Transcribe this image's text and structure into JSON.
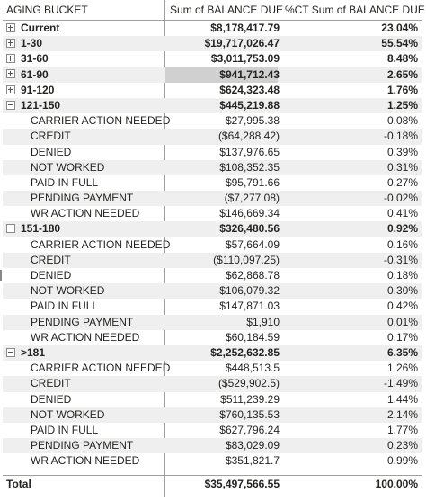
{
  "headers": {
    "bucket": "AGING BUCKET",
    "balance": "Sum of BALANCE DUE",
    "pct": "%CT Sum of BALANCE DUE"
  },
  "rows": [
    {
      "label": "Current",
      "balance": "$8,178,417.79",
      "pct": "23.04%",
      "level": 0,
      "expander": "plus"
    },
    {
      "label": "1-30",
      "balance": "$19,717,026.47",
      "pct": "55.54%",
      "level": 0,
      "expander": "plus"
    },
    {
      "label": "31-60",
      "balance": "$3,011,753.09",
      "pct": "8.48%",
      "level": 0,
      "expander": "plus"
    },
    {
      "label": "61-90",
      "balance": "$941,712.43",
      "pct": "2.65%",
      "level": 0,
      "expander": "plus",
      "highlight": true
    },
    {
      "label": "91-120",
      "balance": "$624,323.48",
      "pct": "1.76%",
      "level": 0,
      "expander": "plus"
    },
    {
      "label": "121-150",
      "balance": "$445,219.88",
      "pct": "1.25%",
      "level": 0,
      "expander": "minus"
    },
    {
      "label": "CARRIER ACTION NEEDED",
      "balance": "$27,995.38",
      "pct": "0.08%",
      "level": 1
    },
    {
      "label": "CREDIT",
      "balance": "($64,288.42)",
      "pct": "-0.18%",
      "level": 1
    },
    {
      "label": "DENIED",
      "balance": "$137,976.65",
      "pct": "0.39%",
      "level": 1
    },
    {
      "label": "NOT WORKED",
      "balance": "$108,352.35",
      "pct": "0.31%",
      "level": 1
    },
    {
      "label": "PAID IN FULL",
      "balance": "$95,791.66",
      "pct": "0.27%",
      "level": 1
    },
    {
      "label": "PENDING PAYMENT",
      "balance": "($7,277.08)",
      "pct": "-0.02%",
      "level": 1
    },
    {
      "label": "WR ACTION NEEDED",
      "balance": "$146,669.34",
      "pct": "0.41%",
      "level": 1
    },
    {
      "label": "151-180",
      "balance": "$326,480.56",
      "pct": "0.92%",
      "level": 0,
      "expander": "minus"
    },
    {
      "label": "CARRIER ACTION NEEDED",
      "balance": "$57,664.09",
      "pct": "0.16%",
      "level": 1
    },
    {
      "label": "CREDIT",
      "balance": "($110,097.25)",
      "pct": "-0.31%",
      "level": 1
    },
    {
      "label": "DENIED",
      "balance": "$62,868.78",
      "pct": "0.18%",
      "level": 1
    },
    {
      "label": "NOT WORKED",
      "balance": "$106,079.32",
      "pct": "0.30%",
      "level": 1
    },
    {
      "label": "PAID IN FULL",
      "balance": "$147,871.03",
      "pct": "0.42%",
      "level": 1
    },
    {
      "label": "PENDING PAYMENT",
      "balance": "$1,910",
      "pct": "0.01%",
      "level": 1
    },
    {
      "label": "WR ACTION NEEDED",
      "balance": "$60,184.59",
      "pct": "0.17%",
      "level": 1
    },
    {
      "label": ">181",
      "balance": "$2,252,632.85",
      "pct": "6.35%",
      "level": 0,
      "expander": "minus"
    },
    {
      "label": "CARRIER ACTION NEEDED",
      "balance": "$448,513.5",
      "pct": "1.26%",
      "level": 1
    },
    {
      "label": "CREDIT",
      "balance": "($529,902.5)",
      "pct": "-1.49%",
      "level": 1
    },
    {
      "label": "DENIED",
      "balance": "$511,239.29",
      "pct": "1.44%",
      "level": 1
    },
    {
      "label": "NOT WORKED",
      "balance": "$760,135.53",
      "pct": "2.14%",
      "level": 1
    },
    {
      "label": "PAID IN FULL",
      "balance": "$627,796.24",
      "pct": "1.77%",
      "level": 1
    },
    {
      "label": "PENDING PAYMENT",
      "balance": "$83,029.09",
      "pct": "0.23%",
      "level": 1
    },
    {
      "label": "WR ACTION NEEDED",
      "balance": "$351,821.7",
      "pct": "0.99%",
      "level": 1
    }
  ],
  "total": {
    "label": "Total",
    "balance": "$35,497,566.55",
    "pct": "100.00%"
  },
  "colors": {
    "divider": "#53b6e5",
    "shade": "#efefef",
    "highlight": "#d0d0d0"
  }
}
